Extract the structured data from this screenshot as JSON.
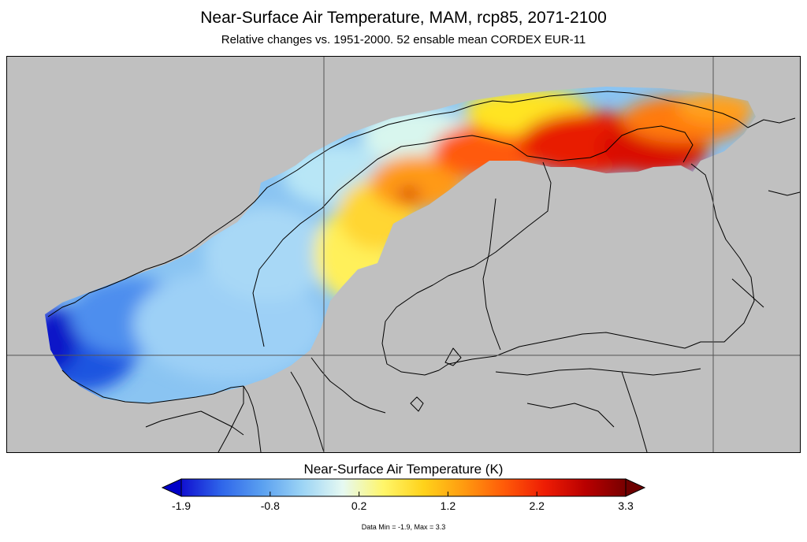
{
  "title": "Near-Surface Air Temperature, MAM, rcp85, 2071-2100",
  "subtitle": "Relative changes vs. 1951-2000. 52 ensable mean CORDEX EUR-11",
  "colorbar": {
    "title": "Near-Surface Air Temperature (K)",
    "ticks": [
      "-1.9",
      "-0.8",
      "0.2",
      "1.2",
      "2.2",
      "3.3"
    ],
    "min": -1.9,
    "max": 3.3,
    "colors": [
      "#1010d0",
      "#2f66ea",
      "#5aa0f0",
      "#9cd4f5",
      "#e6f9f2",
      "#fff66a",
      "#ffd21a",
      "#ff9a10",
      "#ff5a08",
      "#ee1c04",
      "#b90000",
      "#780000"
    ],
    "under_color": "#0000c8",
    "over_color": "#6e0000"
  },
  "footnote": "Data Min = -1.9, Max = 3.3",
  "map": {
    "background_color": "#c0c0c0",
    "border_color": "#000000",
    "grid_color": "#555555"
  }
}
